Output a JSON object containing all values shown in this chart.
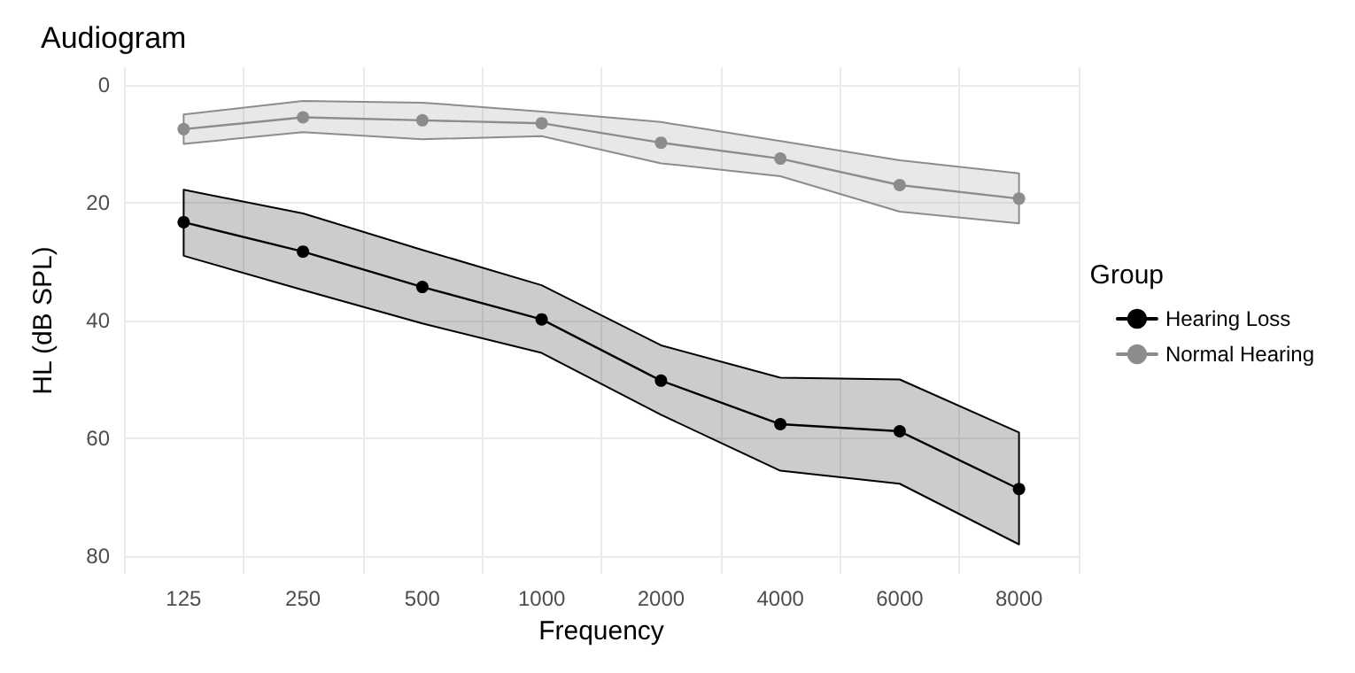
{
  "chart_data": {
    "type": "line",
    "title": "Audiogram",
    "xlabel": "Frequency",
    "ylabel": "HL (dB SPL)",
    "legend_title": "Group",
    "categories": [
      "125",
      "250",
      "500",
      "1000",
      "2000",
      "4000",
      "6000",
      "8000"
    ],
    "series": [
      {
        "name": "Hearing Loss",
        "color": "#000000",
        "values": [
          23.3,
          28.3,
          34.3,
          39.8,
          50.2,
          57.6,
          58.8,
          68.6
        ],
        "lower": [
          17.8,
          21.8,
          28,
          34,
          44.2,
          49.7,
          50,
          59
        ],
        "upper": [
          29,
          34.8,
          40.5,
          45.5,
          56,
          65.5,
          67.7,
          78
        ]
      },
      {
        "name": "Normal Hearing",
        "color": "#8c8c8c",
        "values": [
          7.5,
          5.5,
          6,
          6.5,
          9.8,
          12.5,
          17,
          19.3
        ],
        "lower": [
          5,
          2.7,
          3,
          4.5,
          6.3,
          9.5,
          12.8,
          15
        ],
        "upper": [
          10,
          8,
          9.2,
          8.7,
          13.3,
          15.5,
          21.5,
          23.5
        ]
      }
    ],
    "ylim": [
      83,
      -3
    ],
    "yticks": [
      0,
      20,
      40,
      60,
      80
    ],
    "grid": true,
    "legend": "right",
    "marker": "circle",
    "line_style": "solid"
  }
}
